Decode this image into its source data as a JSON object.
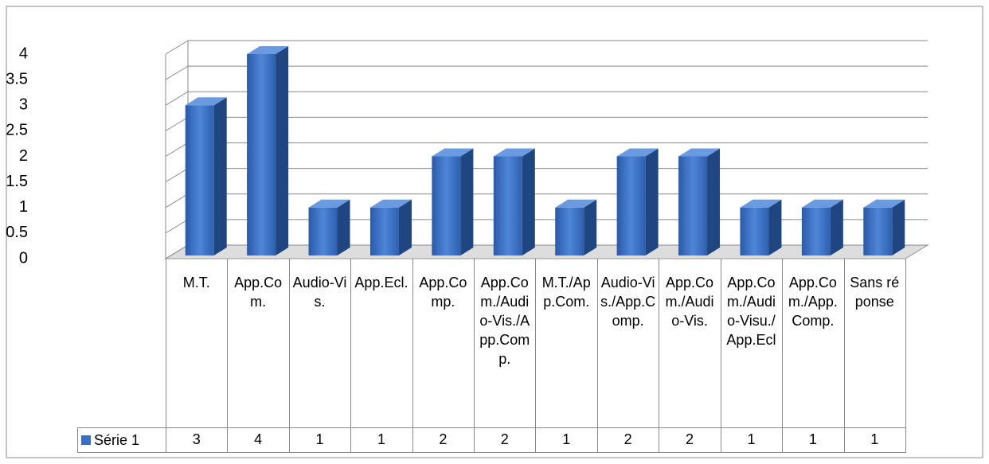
{
  "chart_data": {
    "type": "bar3d",
    "categories": [
      "M.T.",
      "App.Com.",
      "Audio-Vis.",
      "App.Ecl.",
      "App.Comp.",
      "App.Com./Audio-Vis./App.Comp.",
      "M.T./App.Com.",
      "Audio-Vis./App.Comp.",
      "App.Com./Audio-Vis.",
      "App.Com./Audio-Visu./App.Ecl",
      "App.Com./App.Comp.",
      "Sans réponse"
    ],
    "series": [
      {
        "name": "Série 1",
        "color": "#3a6fc4",
        "values": [
          3,
          4,
          1,
          1,
          2,
          2,
          1,
          2,
          2,
          1,
          1,
          1
        ]
      }
    ],
    "ylim": [
      0,
      4
    ],
    "yticks": [
      0,
      0.5,
      1,
      1.5,
      2,
      2.5,
      3,
      3.5,
      4
    ],
    "grid": true,
    "data_table": true
  }
}
